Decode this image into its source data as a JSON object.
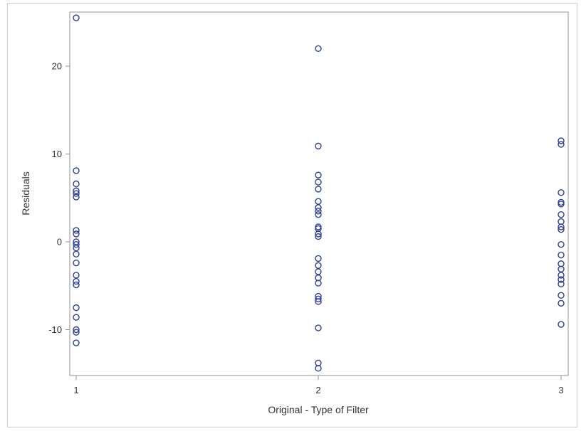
{
  "chart_data": {
    "type": "scatter",
    "title": "",
    "xlabel": "Original - Type of Filter",
    "ylabel": "Residuals",
    "xlim": [
      1,
      3
    ],
    "ylim": [
      -15,
      26
    ],
    "x_ticks": [
      "1",
      "2",
      "3"
    ],
    "y_ticks": [
      -10,
      0,
      10,
      20
    ],
    "grid": false,
    "marker": "open-circle",
    "marker_color": "#2b3e9e",
    "series": [
      {
        "points": [
          [
            1,
            25.5
          ],
          [
            1,
            8.1
          ],
          [
            1,
            6.6
          ],
          [
            1,
            5.8
          ],
          [
            1,
            5.5
          ],
          [
            1,
            5.1
          ],
          [
            1,
            1.3
          ],
          [
            1,
            0.9
          ],
          [
            1,
            0.0
          ],
          [
            1,
            -0.3
          ],
          [
            1,
            -0.7
          ],
          [
            1,
            -1.4
          ],
          [
            1,
            -2.4
          ],
          [
            1,
            -3.8
          ],
          [
            1,
            -4.5
          ],
          [
            1,
            -4.9
          ],
          [
            1,
            -7.5
          ],
          [
            1,
            -8.6
          ],
          [
            1,
            -10.0
          ],
          [
            1,
            -10.3
          ],
          [
            1,
            -11.5
          ],
          [
            2,
            22.0
          ],
          [
            2,
            10.9
          ],
          [
            2,
            7.6
          ],
          [
            2,
            6.8
          ],
          [
            2,
            6.0
          ],
          [
            2,
            4.6
          ],
          [
            2,
            3.9
          ],
          [
            2,
            3.5
          ],
          [
            2,
            3.1
          ],
          [
            2,
            1.7
          ],
          [
            2,
            1.5
          ],
          [
            2,
            0.9
          ],
          [
            2,
            0.6
          ],
          [
            2,
            -1.9
          ],
          [
            2,
            -2.7
          ],
          [
            2,
            -3.4
          ],
          [
            2,
            -4.1
          ],
          [
            2,
            -4.7
          ],
          [
            2,
            -6.2
          ],
          [
            2,
            -6.5
          ],
          [
            2,
            -6.8
          ],
          [
            2,
            -9.8
          ],
          [
            2,
            -13.8
          ],
          [
            2,
            -14.4
          ],
          [
            3,
            11.5
          ],
          [
            3,
            11.1
          ],
          [
            3,
            5.6
          ],
          [
            3,
            4.5
          ],
          [
            3,
            4.3
          ],
          [
            3,
            3.1
          ],
          [
            3,
            2.3
          ],
          [
            3,
            1.7
          ],
          [
            3,
            1.4
          ],
          [
            3,
            -0.3
          ],
          [
            3,
            -1.5
          ],
          [
            3,
            -2.5
          ],
          [
            3,
            -3.1
          ],
          [
            3,
            -3.8
          ],
          [
            3,
            -4.3
          ],
          [
            3,
            -4.8
          ],
          [
            3,
            -6.1
          ],
          [
            3,
            -7.0
          ],
          [
            3,
            -9.4
          ]
        ]
      }
    ]
  }
}
